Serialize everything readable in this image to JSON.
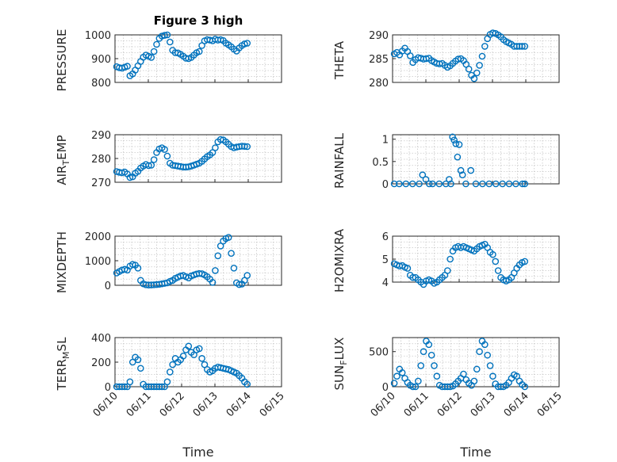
{
  "figure": {
    "title": "Figure 3 high"
  },
  "chart_data": [
    {
      "type": "scatter",
      "title": "Figure 3 high",
      "ylabel": "PRESSURE",
      "ylim": [
        800,
        1000
      ],
      "yticks": [
        800,
        900,
        1000
      ],
      "xlim": [
        "06/10",
        "06/15"
      ],
      "xtick_labels": [],
      "xlabel": "",
      "grid": true,
      "color": "#0072BD",
      "x": [
        0.05,
        0.13,
        0.21,
        0.29,
        0.37,
        0.45,
        0.53,
        0.61,
        0.69,
        0.77,
        0.85,
        0.93,
        1.01,
        1.09,
        1.17,
        1.25,
        1.33,
        1.41,
        1.49,
        1.57,
        1.65,
        1.73,
        1.81,
        1.89,
        1.97,
        2.05,
        2.13,
        2.21,
        2.29,
        2.37,
        2.45,
        2.53,
        2.61,
        2.69,
        2.77,
        2.85,
        2.93,
        3.01,
        3.09,
        3.17,
        3.25,
        3.33,
        3.41,
        3.49,
        3.57,
        3.65,
        3.73,
        3.81,
        3.89,
        3.97
      ],
      "y": [
        866,
        862,
        860,
        864,
        868,
        828,
        836,
        852,
        870,
        888,
        906,
        915,
        910,
        905,
        930,
        960,
        985,
        995,
        998,
        1000,
        970,
        935,
        925,
        924,
        918,
        910,
        902,
        900,
        905,
        915,
        925,
        930,
        955,
        975,
        980,
        978,
        975,
        982,
        978,
        980,
        976,
        965,
        958,
        950,
        940,
        932,
        945,
        955,
        962,
        965
      ]
    },
    {
      "type": "scatter",
      "ylabel": "THETA",
      "ylim": [
        280,
        290
      ],
      "yticks": [
        280,
        285,
        290
      ],
      "xlim": [
        "06/10",
        "06/15"
      ],
      "xtick_labels": [],
      "xlabel": "",
      "grid": true,
      "color": "#0072BD",
      "x": [
        0.05,
        0.13,
        0.21,
        0.29,
        0.37,
        0.45,
        0.53,
        0.61,
        0.69,
        0.77,
        0.85,
        0.93,
        1.01,
        1.09,
        1.17,
        1.25,
        1.33,
        1.41,
        1.49,
        1.57,
        1.65,
        1.73,
        1.81,
        1.89,
        1.97,
        2.05,
        2.13,
        2.21,
        2.29,
        2.37,
        2.45,
        2.53,
        2.61,
        2.69,
        2.77,
        2.85,
        2.93,
        3.01,
        3.09,
        3.17,
        3.25,
        3.33,
        3.41,
        3.49,
        3.57,
        3.65,
        3.73,
        3.81,
        3.89,
        3.97
      ],
      "y": [
        286,
        286.3,
        285.8,
        286.6,
        287.2,
        286.5,
        285.6,
        284.2,
        284.8,
        285.2,
        285.1,
        284.9,
        285,
        285.1,
        284.6,
        284.3,
        284,
        283.9,
        284,
        283.6,
        283.2,
        283.5,
        284,
        284.5,
        284.9,
        285,
        284.6,
        283.8,
        282.8,
        281.5,
        280.8,
        282,
        283.6,
        285.5,
        287.6,
        289.2,
        290.1,
        290.4,
        290.3,
        290,
        289.6,
        289,
        288.6,
        288.3,
        288,
        287.6,
        287.6,
        287.6,
        287.6,
        287.6
      ]
    },
    {
      "type": "scatter",
      "ylabel": "AIR_TEMP",
      "ylim": [
        270,
        290
      ],
      "yticks": [
        270,
        280,
        290
      ],
      "xlim": [
        "06/10",
        "06/15"
      ],
      "xtick_labels": [],
      "xlabel": "",
      "grid": true,
      "color": "#0072BD",
      "x": [
        0.05,
        0.13,
        0.21,
        0.29,
        0.37,
        0.45,
        0.53,
        0.61,
        0.69,
        0.77,
        0.85,
        0.93,
        1.01,
        1.09,
        1.17,
        1.25,
        1.33,
        1.41,
        1.49,
        1.57,
        1.65,
        1.73,
        1.81,
        1.89,
        1.97,
        2.05,
        2.13,
        2.21,
        2.29,
        2.37,
        2.45,
        2.53,
        2.61,
        2.69,
        2.77,
        2.85,
        2.93,
        3.01,
        3.09,
        3.17,
        3.25,
        3.33,
        3.41,
        3.49,
        3.57,
        3.65,
        3.73,
        3.81,
        3.89,
        3.97
      ],
      "y": [
        274.5,
        274.2,
        274,
        274.3,
        273.5,
        272,
        272.3,
        273.8,
        274.6,
        276,
        276.8,
        277.5,
        277,
        277.2,
        279.5,
        282.5,
        284,
        284.5,
        283.8,
        281,
        278,
        277.2,
        277,
        276.8,
        276.6,
        276.4,
        276.4,
        276.5,
        276.8,
        277.2,
        277.6,
        278,
        278.8,
        279.8,
        280.8,
        281.5,
        282.5,
        284.5,
        287,
        288,
        287.8,
        287,
        286,
        285,
        284.5,
        284.8,
        285,
        285.2,
        285.1,
        285
      ]
    },
    {
      "type": "scatter",
      "ylabel": "RAINFALL",
      "ylim": [
        0,
        1.1
      ],
      "yticks": [
        0,
        0.5,
        1
      ],
      "xlim": [
        "06/10",
        "06/15"
      ],
      "xtick_labels": [],
      "xlabel": "",
      "grid": true,
      "color": "#0072BD",
      "x": [
        0.05,
        0.2,
        0.4,
        0.6,
        0.8,
        0.9,
        1.0,
        1.1,
        1.2,
        1.4,
        1.6,
        1.7,
        1.75,
        1.8,
        1.85,
        1.9,
        1.95,
        2.0,
        2.05,
        2.1,
        2.2,
        2.35,
        2.5,
        2.7,
        2.9,
        3.1,
        3.3,
        3.5,
        3.7,
        3.9,
        3.97
      ],
      "y": [
        0,
        0,
        0,
        0,
        0,
        0.2,
        0.1,
        0,
        0,
        0,
        0,
        0.1,
        0,
        1.05,
        0.98,
        0.9,
        0.6,
        0.88,
        0.3,
        0.2,
        0,
        0.3,
        0,
        0,
        0,
        0,
        0,
        0,
        0,
        0,
        0
      ]
    },
    {
      "type": "scatter",
      "ylabel": "MIXDEPTH",
      "ylim": [
        0,
        2000
      ],
      "yticks": [
        0,
        1000,
        2000
      ],
      "xlim": [
        "06/10",
        "06/15"
      ],
      "xtick_labels": [],
      "xlabel": "",
      "grid": true,
      "color": "#0072BD",
      "x": [
        0.05,
        0.13,
        0.21,
        0.29,
        0.37,
        0.45,
        0.53,
        0.61,
        0.69,
        0.77,
        0.85,
        0.93,
        1.01,
        1.09,
        1.17,
        1.25,
        1.33,
        1.41,
        1.49,
        1.57,
        1.65,
        1.73,
        1.81,
        1.89,
        1.97,
        2.05,
        2.13,
        2.21,
        2.29,
        2.37,
        2.45,
        2.53,
        2.61,
        2.69,
        2.77,
        2.85,
        2.93,
        3.01,
        3.09,
        3.17,
        3.25,
        3.33,
        3.41,
        3.49,
        3.57,
        3.65,
        3.73,
        3.81,
        3.89,
        3.97
      ],
      "y": [
        500,
        560,
        620,
        650,
        620,
        780,
        850,
        820,
        700,
        200,
        60,
        20,
        10,
        15,
        20,
        30,
        40,
        60,
        80,
        100,
        160,
        200,
        280,
        330,
        380,
        400,
        350,
        300,
        380,
        420,
        460,
        480,
        470,
        420,
        350,
        250,
        120,
        600,
        1200,
        1600,
        1800,
        1900,
        1950,
        1300,
        700,
        100,
        30,
        50,
        200,
        400
      ]
    },
    {
      "type": "scatter",
      "ylabel": "H2OMIXRA",
      "ylim": [
        4,
        6
      ],
      "yticks": [
        4,
        5,
        6
      ],
      "xlim": [
        "06/10",
        "06/15"
      ],
      "xtick_labels": [],
      "xlabel": "",
      "grid": true,
      "color": "#0072BD",
      "x": [
        0.05,
        0.13,
        0.21,
        0.29,
        0.37,
        0.45,
        0.53,
        0.61,
        0.69,
        0.77,
        0.85,
        0.93,
        1.01,
        1.09,
        1.17,
        1.25,
        1.33,
        1.41,
        1.49,
        1.57,
        1.65,
        1.73,
        1.81,
        1.89,
        1.97,
        2.05,
        2.13,
        2.21,
        2.29,
        2.37,
        2.45,
        2.53,
        2.61,
        2.69,
        2.77,
        2.85,
        2.93,
        3.01,
        3.09,
        3.17,
        3.25,
        3.33,
        3.41,
        3.49,
        3.57,
        3.65,
        3.73,
        3.81,
        3.89,
        3.97
      ],
      "y": [
        4.8,
        4.75,
        4.7,
        4.72,
        4.65,
        4.6,
        4.3,
        4.2,
        4.2,
        4.1,
        4.0,
        3.9,
        4.05,
        4.1,
        4.05,
        3.95,
        4.0,
        4.1,
        4.2,
        4.3,
        4.5,
        5.0,
        5.35,
        5.5,
        5.55,
        5.5,
        5.55,
        5.5,
        5.45,
        5.4,
        5.35,
        5.45,
        5.55,
        5.6,
        5.65,
        5.5,
        5.3,
        5.2,
        4.9,
        4.5,
        4.2,
        4.1,
        4.05,
        4.1,
        4.2,
        4.4,
        4.6,
        4.75,
        4.85,
        4.9
      ]
    },
    {
      "type": "scatter",
      "ylabel": "TERR_MSL",
      "ylim": [
        0,
        400
      ],
      "yticks": [
        0,
        200,
        400
      ],
      "xlim": [
        "06/10",
        "06/15"
      ],
      "xticks": [
        "06/10",
        "06/11",
        "06/12",
        "06/13",
        "06/14",
        "06/15"
      ],
      "xtick_labels": [
        "06/10",
        "06/11",
        "06/12",
        "06/13",
        "06/14",
        "06/15"
      ],
      "xlabel": "Time",
      "grid": true,
      "color": "#0072BD",
      "x": [
        0.05,
        0.13,
        0.21,
        0.29,
        0.37,
        0.45,
        0.53,
        0.61,
        0.69,
        0.77,
        0.85,
        0.93,
        1.01,
        1.09,
        1.17,
        1.25,
        1.33,
        1.41,
        1.49,
        1.57,
        1.65,
        1.73,
        1.81,
        1.89,
        1.97,
        2.05,
        2.13,
        2.21,
        2.29,
        2.37,
        2.45,
        2.53,
        2.61,
        2.69,
        2.77,
        2.85,
        2.93,
        3.01,
        3.09,
        3.17,
        3.25,
        3.33,
        3.41,
        3.49,
        3.57,
        3.65,
        3.73,
        3.81,
        3.89,
        3.97
      ],
      "y": [
        0,
        0,
        0,
        0,
        0,
        40,
        200,
        240,
        220,
        150,
        20,
        0,
        0,
        0,
        0,
        0,
        0,
        0,
        0,
        40,
        120,
        180,
        230,
        200,
        220,
        250,
        300,
        330,
        280,
        260,
        300,
        310,
        230,
        180,
        140,
        120,
        130,
        150,
        160,
        155,
        150,
        145,
        140,
        130,
        120,
        110,
        90,
        70,
        40,
        20
      ]
    },
    {
      "type": "scatter",
      "ylabel": "SUN_FLUX",
      "ylim": [
        0,
        700
      ],
      "yticks": [
        0,
        500
      ],
      "xlim": [
        "06/10",
        "06/15"
      ],
      "xticks": [
        "06/10",
        "06/11",
        "06/12",
        "06/13",
        "06/14",
        "06/15"
      ],
      "xtick_labels": [
        "06/10",
        "06/11",
        "06/12",
        "06/13",
        "06/14",
        "06/15"
      ],
      "xlabel": "Time",
      "grid": true,
      "color": "#0072BD",
      "x": [
        0.05,
        0.13,
        0.21,
        0.29,
        0.37,
        0.45,
        0.53,
        0.61,
        0.69,
        0.77,
        0.85,
        0.93,
        1.01,
        1.09,
        1.17,
        1.25,
        1.33,
        1.41,
        1.49,
        1.57,
        1.65,
        1.73,
        1.81,
        1.89,
        1.97,
        2.05,
        2.13,
        2.21,
        2.29,
        2.37,
        2.45,
        2.53,
        2.61,
        2.69,
        2.77,
        2.85,
        2.93,
        3.01,
        3.09,
        3.17,
        3.25,
        3.33,
        3.41,
        3.49,
        3.57,
        3.65,
        3.73,
        3.81,
        3.89,
        3.97
      ],
      "y": [
        50,
        150,
        250,
        200,
        120,
        60,
        20,
        0,
        0,
        80,
        300,
        500,
        650,
        600,
        450,
        300,
        150,
        20,
        0,
        0,
        0,
        0,
        10,
        40,
        80,
        120,
        180,
        100,
        50,
        20,
        80,
        250,
        500,
        650,
        600,
        450,
        300,
        150,
        40,
        0,
        0,
        0,
        20,
        60,
        120,
        170,
        150,
        80,
        30,
        0
      ]
    }
  ]
}
